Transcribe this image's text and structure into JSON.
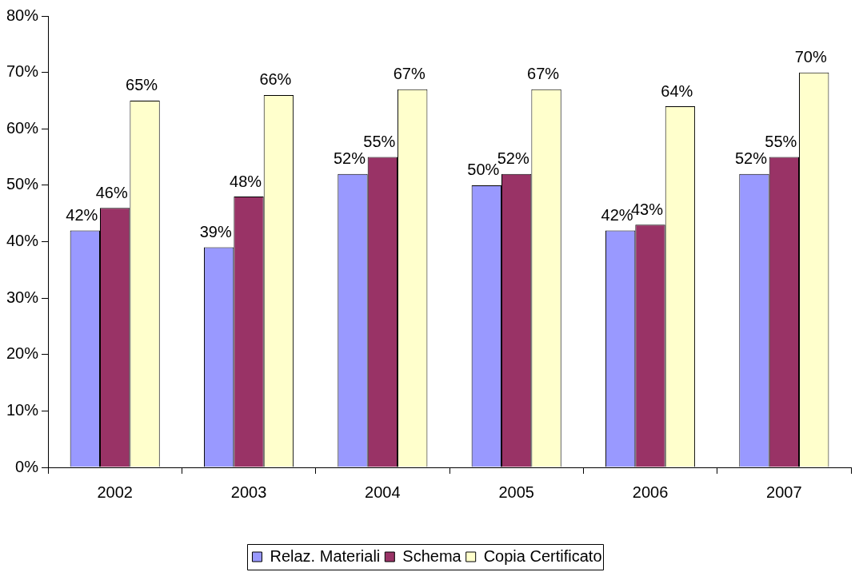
{
  "chart_data": {
    "type": "bar",
    "categories": [
      "2002",
      "2003",
      "2004",
      "2005",
      "2006",
      "2007"
    ],
    "series": [
      {
        "name": "Relaz. Materiali",
        "color": "#9999ff",
        "values": [
          42,
          39,
          52,
          50,
          42,
          52
        ],
        "value_labels": [
          "42%",
          "39%",
          "52%",
          "50%",
          "42%",
          "52%"
        ]
      },
      {
        "name": "Schema",
        "color": "#993366",
        "values": [
          46,
          48,
          55,
          52,
          43,
          55
        ],
        "value_labels": [
          "46%",
          "48%",
          "55%",
          "52%",
          "43%",
          "55%"
        ]
      },
      {
        "name": "Copia Certificato",
        "color": "#ffffcc",
        "values": [
          65,
          66,
          67,
          67,
          64,
          70
        ],
        "value_labels": [
          "65%",
          "66%",
          "67%",
          "67%",
          "64%",
          "70%"
        ]
      }
    ],
    "ylim": [
      0,
      80
    ],
    "yticks": [
      {
        "value": 0,
        "label": "0%"
      },
      {
        "value": 10,
        "label": "10%"
      },
      {
        "value": 20,
        "label": "20%"
      },
      {
        "value": 30,
        "label": "30%"
      },
      {
        "value": 40,
        "label": "40%"
      },
      {
        "value": 50,
        "label": "50%"
      },
      {
        "value": 60,
        "label": "60%"
      },
      {
        "value": 70,
        "label": "70%"
      },
      {
        "value": 80,
        "label": "80%"
      }
    ],
    "grid": false,
    "legend": "bottom"
  }
}
